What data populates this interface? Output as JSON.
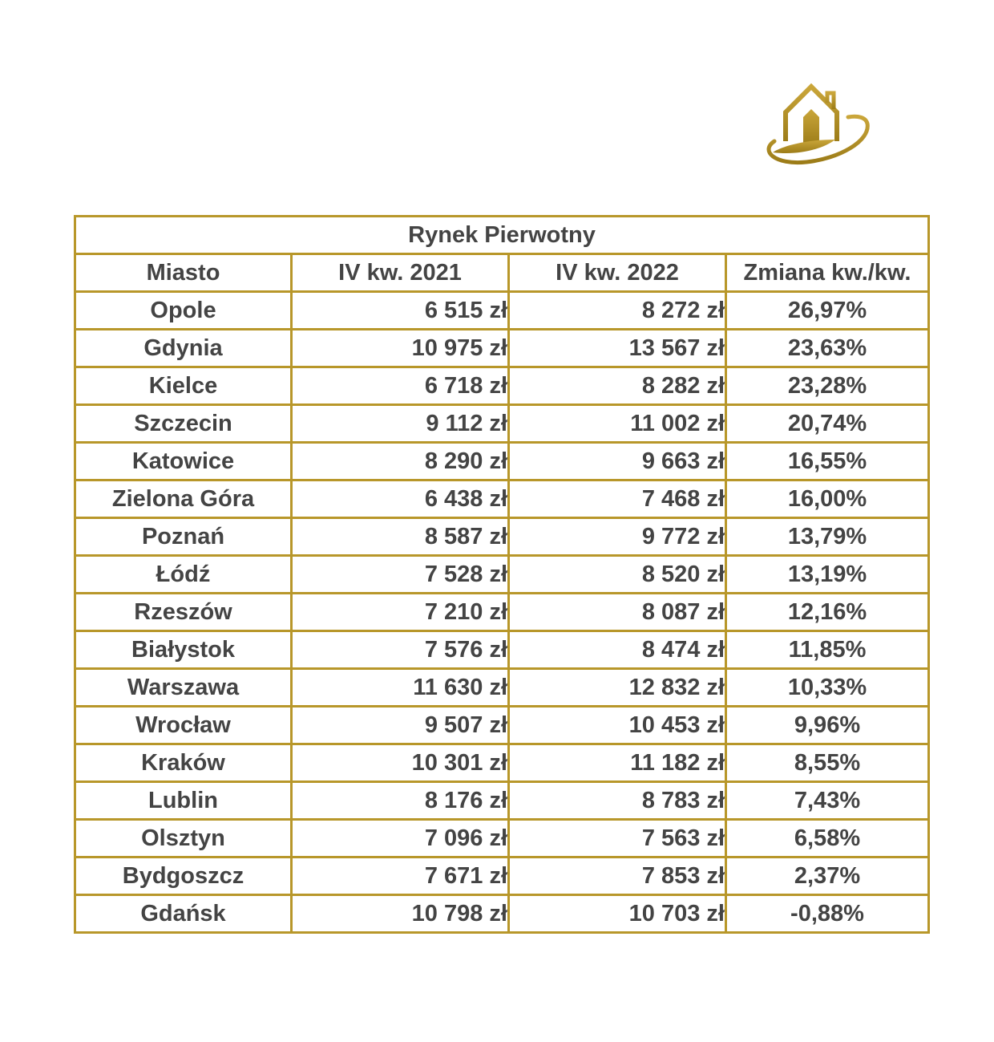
{
  "colors": {
    "gold": "#b8972a",
    "text": "#444444"
  },
  "logo": {
    "icon": "house-orbit-logo"
  },
  "table": {
    "title": "Rynek Pierwotny",
    "headers": [
      "Miasto",
      "IV kw. 2021",
      "IV kw. 2022",
      "Zmiana kw./kw."
    ],
    "rows": [
      {
        "city": "Opole",
        "q4_2021": "6 515 zł",
        "q4_2022": "8 272 zł",
        "change": "26,97%"
      },
      {
        "city": "Gdynia",
        "q4_2021": "10 975 zł",
        "q4_2022": "13 567 zł",
        "change": "23,63%"
      },
      {
        "city": "Kielce",
        "q4_2021": "6 718 zł",
        "q4_2022": "8 282 zł",
        "change": "23,28%"
      },
      {
        "city": "Szczecin",
        "q4_2021": "9 112 zł",
        "q4_2022": "11 002 zł",
        "change": "20,74%"
      },
      {
        "city": "Katowice",
        "q4_2021": "8 290 zł",
        "q4_2022": "9 663 zł",
        "change": "16,55%"
      },
      {
        "city": "Zielona Góra",
        "q4_2021": "6 438 zł",
        "q4_2022": "7 468 zł",
        "change": "16,00%"
      },
      {
        "city": "Poznań",
        "q4_2021": "8 587 zł",
        "q4_2022": "9 772 zł",
        "change": "13,79%"
      },
      {
        "city": "Łódź",
        "q4_2021": "7 528 zł",
        "q4_2022": "8 520 zł",
        "change": "13,19%"
      },
      {
        "city": "Rzeszów",
        "q4_2021": "7 210 zł",
        "q4_2022": "8 087 zł",
        "change": "12,16%"
      },
      {
        "city": "Białystok",
        "q4_2021": "7 576 zł",
        "q4_2022": "8 474 zł",
        "change": "11,85%"
      },
      {
        "city": "Warszawa",
        "q4_2021": "11 630 zł",
        "q4_2022": "12 832 zł",
        "change": "10,33%"
      },
      {
        "city": "Wrocław",
        "q4_2021": "9 507 zł",
        "q4_2022": "10 453 zł",
        "change": "9,96%"
      },
      {
        "city": "Kraków",
        "q4_2021": "10 301 zł",
        "q4_2022": "11 182 zł",
        "change": "8,55%"
      },
      {
        "city": "Lublin",
        "q4_2021": "8 176 zł",
        "q4_2022": "8 783 zł",
        "change": "7,43%"
      },
      {
        "city": "Olsztyn",
        "q4_2021": "7 096 zł",
        "q4_2022": "7 563 zł",
        "change": "6,58%"
      },
      {
        "city": "Bydgoszcz",
        "q4_2021": "7 671 zł",
        "q4_2022": "7 853 zł",
        "change": "2,37%"
      },
      {
        "city": "Gdańsk",
        "q4_2021": "10 798 zł",
        "q4_2022": "10 703 zł",
        "change": "-0,88%"
      }
    ]
  }
}
